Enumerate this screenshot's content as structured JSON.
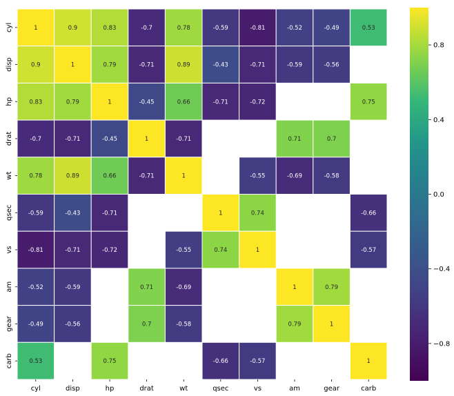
{
  "chart_data": {
    "type": "heatmap",
    "colormap": "viridis",
    "variables": [
      "cyl",
      "disp",
      "hp",
      "drat",
      "wt",
      "qsec",
      "vs",
      "am",
      "gear",
      "carb"
    ],
    "matrix": [
      [
        1,
        0.9,
        0.83,
        -0.7,
        0.78,
        -0.59,
        -0.81,
        -0.52,
        -0.49,
        0.53
      ],
      [
        0.9,
        1,
        0.79,
        -0.71,
        0.89,
        -0.43,
        -0.71,
        -0.59,
        -0.56,
        null
      ],
      [
        0.83,
        0.79,
        1,
        -0.45,
        0.66,
        -0.71,
        -0.72,
        null,
        null,
        0.75
      ],
      [
        -0.7,
        -0.71,
        -0.45,
        1,
        -0.71,
        null,
        null,
        0.71,
        0.7,
        null
      ],
      [
        0.78,
        0.89,
        0.66,
        -0.71,
        1,
        null,
        -0.55,
        -0.69,
        -0.58,
        null
      ],
      [
        -0.59,
        -0.43,
        -0.71,
        null,
        null,
        1,
        0.74,
        null,
        null,
        -0.66
      ],
      [
        -0.81,
        -0.71,
        -0.72,
        null,
        -0.55,
        0.74,
        1,
        null,
        null,
        -0.57
      ],
      [
        -0.52,
        -0.59,
        null,
        0.71,
        -0.69,
        null,
        null,
        1,
        0.79,
        null
      ],
      [
        -0.49,
        -0.56,
        null,
        0.7,
        -0.58,
        null,
        null,
        0.79,
        1,
        null
      ],
      [
        0.53,
        null,
        0.75,
        null,
        null,
        -0.66,
        -0.57,
        null,
        null,
        1
      ]
    ],
    "value_range": [
      -1,
      1
    ],
    "colorbar": {
      "ticks": [
        0.8,
        0.4,
        0.0,
        -0.4,
        -0.8
      ],
      "tick_labels": [
        "0.8",
        "0.4",
        "0.0",
        "−0.4",
        "−0.8"
      ]
    },
    "annotations": true,
    "grid_lines": "white"
  }
}
